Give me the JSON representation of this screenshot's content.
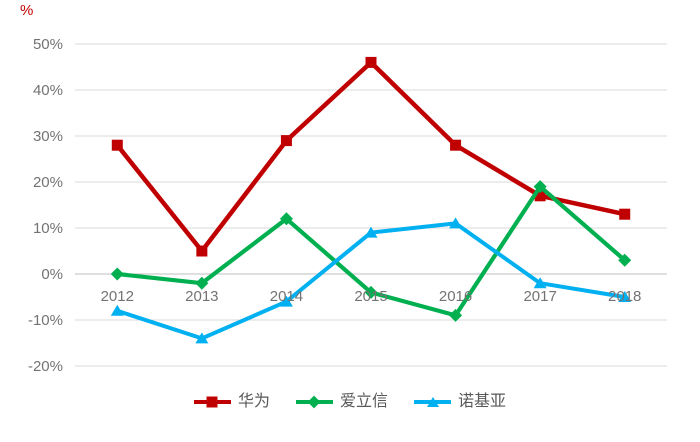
{
  "chart_data": {
    "type": "line",
    "title": "",
    "unit_label": "%",
    "unit_label_color": "#c00000",
    "categories": [
      "2012",
      "2013",
      "2014",
      "2015",
      "2016",
      "2017",
      "2018"
    ],
    "series": [
      {
        "id": "huawei",
        "name": "华为",
        "color": "#c00000",
        "marker": "square",
        "values": [
          28,
          5,
          29,
          46,
          28,
          17,
          13
        ]
      },
      {
        "id": "ericsson",
        "name": "爱立信",
        "color": "#00b050",
        "marker": "diamond",
        "values": [
          0,
          -2,
          12,
          -4,
          -9,
          19,
          3
        ]
      },
      {
        "id": "nokia",
        "name": "诺基亚",
        "color": "#00b0f0",
        "marker": "triangle",
        "values": [
          -8,
          -14,
          -6,
          9,
          11,
          -2,
          -5
        ]
      }
    ],
    "y_axis": {
      "min": -20,
      "max": 50,
      "step": 10,
      "tick_labels": [
        "50%",
        "40%",
        "30%",
        "20%",
        "10%",
        "0%",
        "-10%",
        "-20%"
      ],
      "tick_values": [
        50,
        40,
        30,
        20,
        10,
        0,
        -10,
        -20
      ]
    },
    "x_axis": {
      "labels_position": "below zero line"
    },
    "grid": true,
    "gridline_color": "#d9d9d9",
    "zero_axis_color": "#bfbfbf",
    "axis_label_color": "#737373",
    "legend_position": "bottom"
  }
}
